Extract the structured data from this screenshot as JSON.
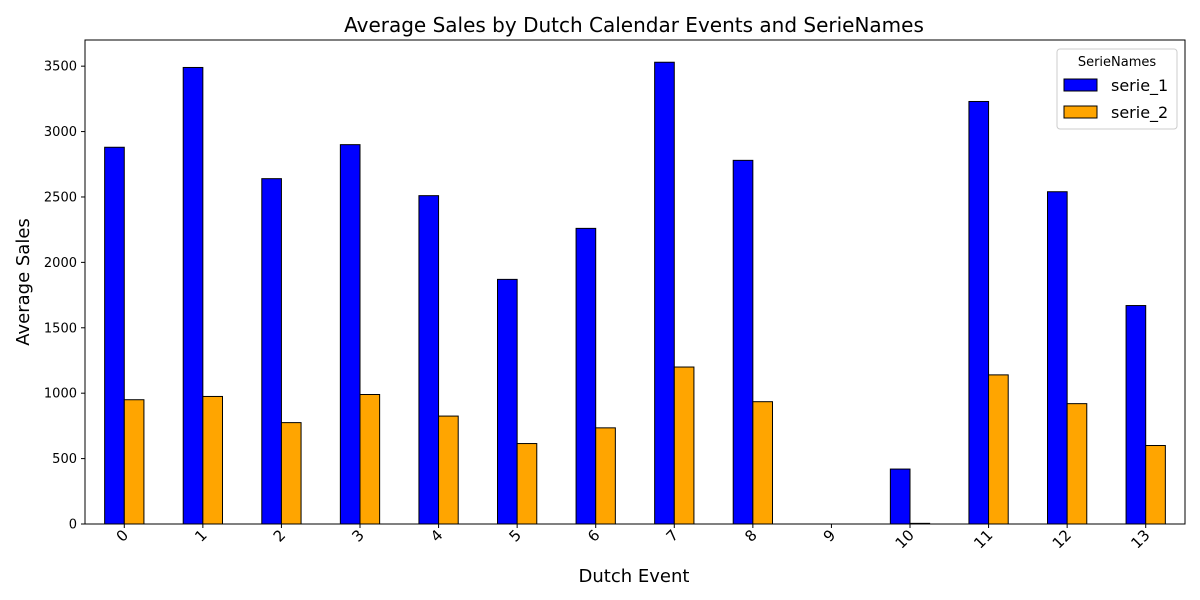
{
  "chart_data": {
    "type": "bar",
    "title": "Average Sales by Dutch Calendar Events and SerieNames",
    "xlabel": "Dutch Event",
    "ylabel": "Average Sales",
    "categories": [
      "0",
      "1",
      "2",
      "3",
      "4",
      "5",
      "6",
      "7",
      "8",
      "9",
      "10",
      "11",
      "12",
      "13"
    ],
    "series": [
      {
        "name": "serie_1",
        "color": "#0000ff",
        "values": [
          2880,
          3490,
          2640,
          2900,
          2510,
          1870,
          2260,
          3530,
          2780,
          0,
          420,
          3230,
          2540,
          1670
        ]
      },
      {
        "name": "serie_2",
        "color": "#ffa500",
        "values": [
          950,
          975,
          775,
          990,
          825,
          615,
          735,
          1200,
          935,
          0,
          5,
          1140,
          920,
          600
        ]
      }
    ],
    "ylim": [
      0,
      3700
    ],
    "yticks": [
      0,
      500,
      1000,
      1500,
      2000,
      2500,
      3000,
      3500
    ],
    "legend": {
      "title": "SerieNames",
      "placement": "top-right"
    },
    "grid": false
  }
}
